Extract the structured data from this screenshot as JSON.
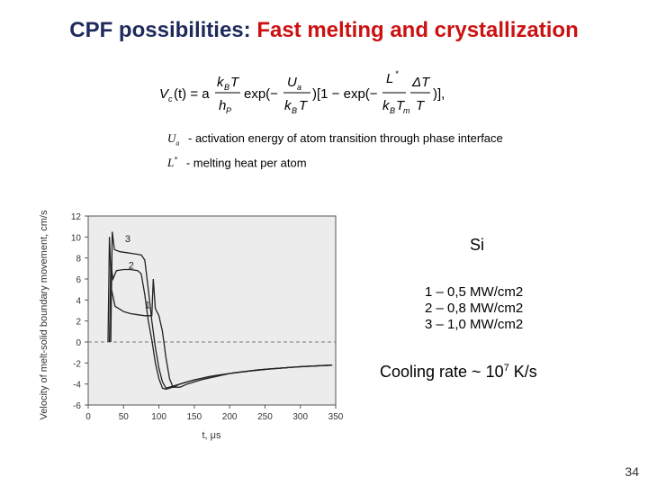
{
  "title": {
    "part1": "CPF possibilities:",
    "part2": "Fast melting and crystallization"
  },
  "formula": {
    "lhs": "V",
    "lhs_sub": "c",
    "lhs_arg": "(t) = a",
    "f1_num": "k",
    "f1_num_sub": "B",
    "f1_num_tail": "T",
    "f1_den": "h",
    "f1_den_sub": "P",
    "exp1": "exp(−",
    "f2_num": "U",
    "f2_num_sub": "a",
    "f2_den": "k",
    "f2_den_sub": "B",
    "f2_den_tail": "T",
    "mid": ")[1 − exp(−",
    "f3_num": "L",
    "f3_num_sup": "*",
    "f4_num": "ΔT",
    "f3_den": "k",
    "f3_den_sub": "B",
    "f3_den_tail": "T",
    "f4_den_sub": "m",
    "f4_den": "T",
    "tail": ")],"
  },
  "definitions": [
    {
      "symbol": "U",
      "symbol_sub": "a",
      "text": "- activation energy of atom transition through phase interface"
    },
    {
      "symbol": "L",
      "symbol_sup": "*",
      "text": "- melting heat per atom"
    }
  ],
  "material": "Si",
  "conditions": [
    {
      "text": "1 – 0,5 MW/cm2"
    },
    {
      "text": "2 – 0,8 MW/cm2"
    },
    {
      "text": "3 – 1,0 MW/cm2"
    }
  ],
  "cooling": {
    "label": "Cooling rate ~ 10",
    "exp": "7",
    "unit": " K/s"
  },
  "page_number": "34",
  "chart_data": {
    "type": "line",
    "xlabel": "t, μs",
    "ylabel": "Velocity of melt-solid boundary movement, cm/s",
    "xlim": [
      0,
      350
    ],
    "ylim": [
      -6,
      12
    ],
    "xticks": [
      0,
      50,
      100,
      150,
      200,
      250,
      300,
      350
    ],
    "yticks": [
      -6,
      -4,
      -2,
      0,
      2,
      4,
      6,
      8,
      10,
      12
    ],
    "grid": false,
    "series": [
      {
        "name": "1",
        "points": [
          [
            28,
            0
          ],
          [
            30,
            10
          ],
          [
            33,
            5
          ],
          [
            38,
            3.4
          ],
          [
            50,
            2.9
          ],
          [
            60,
            2.7
          ],
          [
            70,
            2.6
          ],
          [
            80,
            2.5
          ],
          [
            90,
            2.5
          ],
          [
            92,
            6.0
          ],
          [
            95,
            3.2
          ],
          [
            100,
            2.5
          ],
          [
            105,
            1.0
          ],
          [
            110,
            -1.5
          ],
          [
            115,
            -3.5
          ],
          [
            120,
            -4.3
          ],
          [
            130,
            -4.3
          ],
          [
            140,
            -4.0
          ],
          [
            160,
            -3.6
          ],
          [
            180,
            -3.3
          ],
          [
            200,
            -3.0
          ],
          [
            230,
            -2.75
          ],
          [
            260,
            -2.55
          ],
          [
            300,
            -2.35
          ],
          [
            345,
            -2.2
          ]
        ]
      },
      {
        "name": "2",
        "points": [
          [
            30,
            0
          ],
          [
            32,
            7.5
          ],
          [
            35,
            6.0
          ],
          [
            40,
            6.8
          ],
          [
            50,
            6.9
          ],
          [
            60,
            6.9
          ],
          [
            70,
            6.8
          ],
          [
            75,
            6.5
          ],
          [
            80,
            4.5
          ],
          [
            85,
            2.0
          ],
          [
            90,
            0.2
          ],
          [
            95,
            -2.0
          ],
          [
            100,
            -3.5
          ],
          [
            105,
            -4.4
          ],
          [
            110,
            -4.5
          ],
          [
            120,
            -4.3
          ],
          [
            130,
            -4.0
          ],
          [
            150,
            -3.6
          ],
          [
            180,
            -3.2
          ],
          [
            210,
            -2.9
          ],
          [
            250,
            -2.6
          ],
          [
            300,
            -2.35
          ],
          [
            345,
            -2.2
          ]
        ]
      },
      {
        "name": "3",
        "points": [
          [
            32,
            0
          ],
          [
            34,
            10.5
          ],
          [
            37,
            8.8
          ],
          [
            45,
            8.6
          ],
          [
            55,
            8.5
          ],
          [
            65,
            8.4
          ],
          [
            75,
            8.3
          ],
          [
            80,
            7.8
          ],
          [
            85,
            5.0
          ],
          [
            90,
            2.0
          ],
          [
            95,
            -0.5
          ],
          [
            100,
            -2.5
          ],
          [
            105,
            -3.8
          ],
          [
            110,
            -4.4
          ],
          [
            120,
            -4.2
          ],
          [
            140,
            -3.8
          ],
          [
            170,
            -3.3
          ],
          [
            200,
            -3.0
          ],
          [
            240,
            -2.65
          ],
          [
            290,
            -2.4
          ],
          [
            345,
            -2.2
          ]
        ]
      }
    ]
  }
}
